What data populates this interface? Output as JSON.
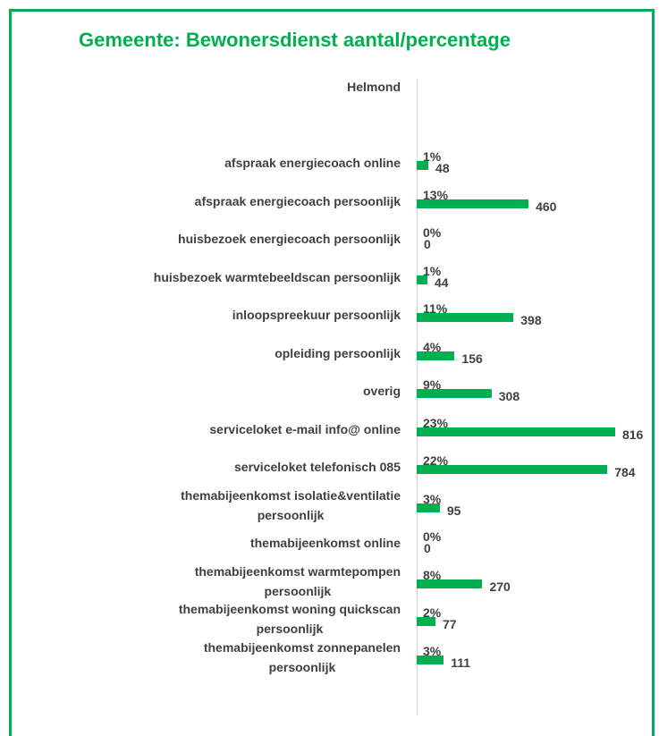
{
  "chart_data": {
    "type": "hbar",
    "title": "Gemeente: Bewonersdienst aantal/percentage",
    "categories": [
      "afspraak energiecoach online",
      "afspraak energiecoach persoonlijk",
      "huisbezoek energiecoach persoonlijk",
      "huisbezoek warmtebeeldscan persoonlijk",
      "inloopspreekuur persoonlijk",
      "opleiding persoonlijk",
      "overig",
      "serviceloket e-mail info@ online",
      "serviceloket telefonisch 085",
      "themabijeenkomst isolatie&ventilatie\npersoonlijk",
      "themabijeenkomst online",
      "themabijeenkomst warmtepompen\npersoonlijk",
      "themabijeenkomst woning quickscan\npersoonlijk",
      "themabijeenkomst zonnepanelen\npersoonlijk"
    ],
    "series": [
      {
        "name": "Helmond",
        "color": "#00b050",
        "values": [
          48,
          460,
          0,
          44,
          398,
          156,
          308,
          816,
          784,
          95,
          0,
          270,
          77,
          111
        ],
        "percentages": [
          1,
          13,
          0,
          1,
          11,
          4,
          9,
          23,
          22,
          3,
          0,
          8,
          2,
          3
        ],
        "percentage_labels": [
          "1%",
          "13%",
          "0%",
          "1%",
          "11%",
          "4%",
          "9%",
          "23%",
          "22%",
          "3%",
          "0%",
          "8%",
          "2%",
          "3%"
        ]
      }
    ]
  }
}
